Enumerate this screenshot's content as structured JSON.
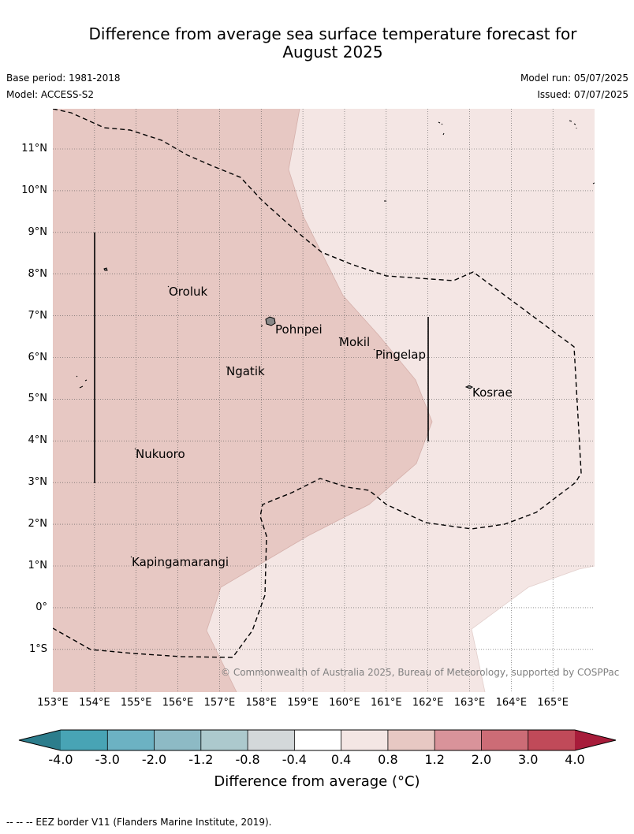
{
  "title": {
    "line1": "Difference from average sea surface temperature forecast for",
    "line2": "August 2025"
  },
  "meta": {
    "base_period": "Base period: 1981-2018",
    "model": "Model: ACCESS-S2",
    "model_run": "Model run: 05/07/2025",
    "issued": "Issued: 07/07/2025"
  },
  "map": {
    "lat_labels": [
      "11°N",
      "10°N",
      "9°N",
      "8°N",
      "7°N",
      "6°N",
      "5°N",
      "4°N",
      "3°N",
      "2°N",
      "1°N",
      "0°",
      "1°S"
    ],
    "lon_labels": [
      "153°E",
      "154°E",
      "155°E",
      "156°E",
      "157°E",
      "158°E",
      "159°E",
      "160°E",
      "161°E",
      "162°E",
      "163°E",
      "164°E",
      "165°E"
    ],
    "places": {
      "oroluk": "Oroluk",
      "pohnpei": "Pohnpei",
      "mokil": "Mokil",
      "pingelap": "Pingelap",
      "ngatik": "Ngatik",
      "kosrae": "Kosrae",
      "nukuoro": "Nukuoro",
      "kapingamarangi": "Kapingamarangi"
    },
    "copyright": "© Commonwealth of Australia 2025, Bureau of Meteorology, supported by COSPPac",
    "colors": {
      "anomaly_0_8_to_1_2": "#e7c8c3",
      "anomaly_0_4_to_0_8": "#f4e6e4",
      "anomaly_minus_0_4_to_0_4": "#ffffff"
    }
  },
  "colorbar": {
    "ticks": [
      "-4.0",
      "-3.0",
      "-2.0",
      "-1.2",
      "-0.8",
      "-0.4",
      "0.4",
      "0.8",
      "1.2",
      "2.0",
      "3.0",
      "4.0"
    ],
    "colors": [
      "#2c7d8c",
      "#48a4b5",
      "#6cb2c3",
      "#8dbac5",
      "#acc9cd",
      "#d3d8da",
      "#ffffff",
      "#f4e6e4",
      "#e7c8c3",
      "#d9939a",
      "#cc6c76",
      "#c04a59",
      "#a71c3a"
    ],
    "title": "Difference from average (°C)"
  },
  "footnote": "--  --  -- EEZ border V11 (Flanders Marine Institute, 2019)."
}
